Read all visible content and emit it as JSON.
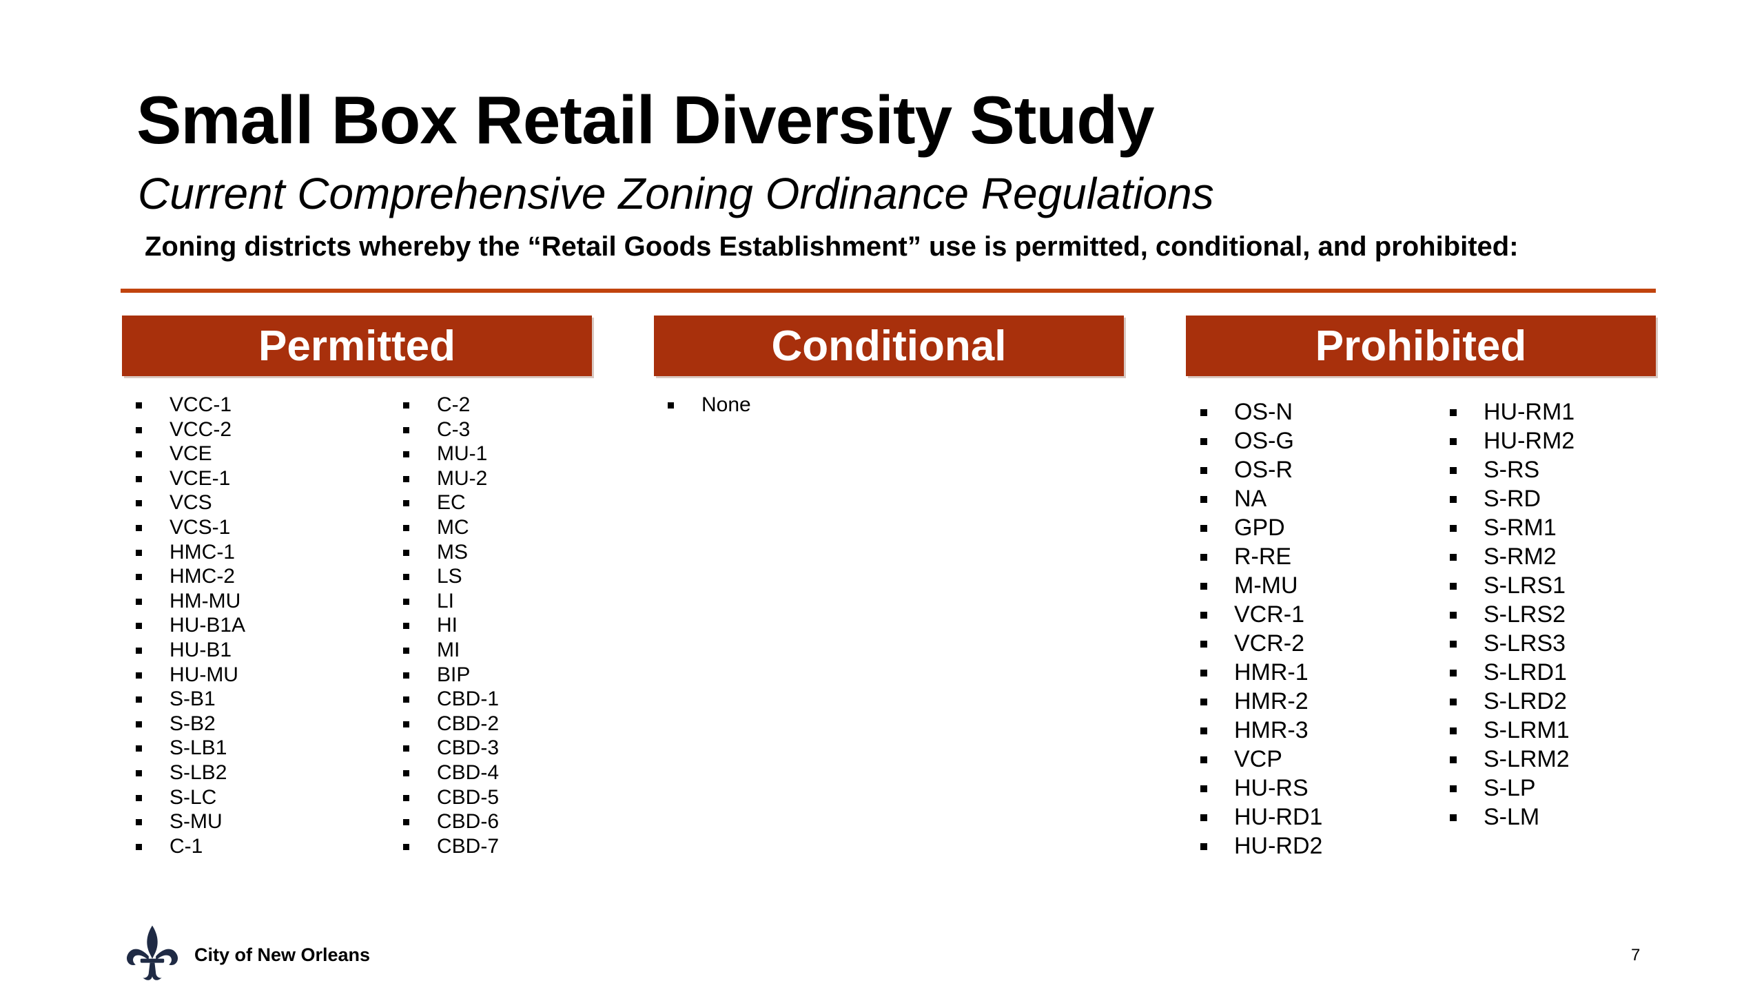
{
  "slide": {
    "title": "Small Box Retail Diversity Study",
    "subtitle": "Current Comprehensive Zoning Ordinance Regulations",
    "question": "Zoning districts whereby the “Retail Goods Establishment” use is permitted, conditional, and prohibited:",
    "accent_color": "#c1440e",
    "header_color": "#a8300c"
  },
  "permitted": {
    "heading": "Permitted",
    "col1": [
      "VCC-1",
      "VCC-2",
      "VCE",
      "VCE-1",
      "VCS",
      "VCS-1",
      "HMC-1",
      "HMC-2",
      "HM-MU",
      "HU-B1A",
      "HU-B1",
      "HU-MU",
      "S-B1",
      "S-B2",
      "S-LB1",
      "S-LB2",
      "S-LC",
      "S-MU",
      "C-1"
    ],
    "col2": [
      "C-2",
      "C-3",
      "MU-1",
      "MU-2",
      "EC",
      "MC",
      "MS",
      "LS",
      "LI",
      "HI",
      "MI",
      "BIP",
      "CBD-1",
      "CBD-2",
      "CBD-3",
      "CBD-4",
      "CBD-5",
      "CBD-6",
      "CBD-7"
    ]
  },
  "conditional": {
    "heading": "Conditional",
    "items": [
      "None"
    ]
  },
  "prohibited": {
    "heading": "Prohibited",
    "col1": [
      "OS-N",
      "OS-G",
      "OS-R",
      "NA",
      "GPD",
      "R-RE",
      "M-MU",
      "VCR-1",
      "VCR-2",
      "HMR-1",
      "HMR-2",
      "HMR-3",
      "VCP",
      "HU-RS",
      "HU-RD1",
      "HU-RD2"
    ],
    "col2": [
      "HU-RM1",
      "HU-RM2",
      "S-RS",
      "S-RD",
      "S-RM1",
      "S-RM2",
      "S-LRS1",
      "S-LRS2",
      "S-LRS3",
      "S-LRD1",
      "S-LRD2",
      "S-LRM1",
      "S-LRM2",
      "S-LP",
      "S-LM"
    ]
  },
  "footer": {
    "organization": "City of New Orleans",
    "logo_icon": "fleur-de-lis-icon",
    "page_number": "7"
  }
}
